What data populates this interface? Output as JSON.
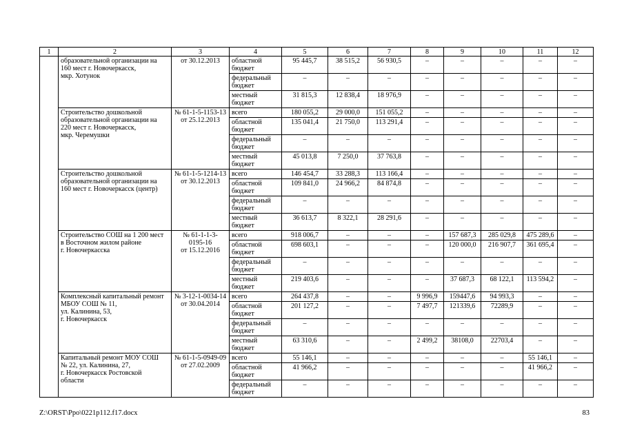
{
  "document": {
    "footer_path": "Z:\\ORST\\Ppo\\0221p112.f17.docx",
    "page_number": "83"
  },
  "table": {
    "column_numbers": [
      "1",
      "2",
      "3",
      "4",
      "5",
      "6",
      "7",
      "8",
      "9",
      "10",
      "11",
      "12"
    ],
    "labels": {
      "total_row": "всего"
    },
    "sections": [
      {
        "row_number": "",
        "object_name": "образовательной организации на\n160 мест г. Новочеркасск,\nмкр. Хотунок",
        "expertise_doc": "от 30.12.2013",
        "rows": [
          {
            "budget": "областной бюджет",
            "values": [
              "95 445,7",
              "38 515,2",
              "56 930,5",
              "–",
              "–",
              "–",
              "–",
              "–"
            ]
          },
          {
            "budget": "федеральный бюджет",
            "values": [
              "–",
              "–",
              "–",
              "–",
              "–",
              "–",
              "–",
              "–"
            ]
          },
          {
            "budget": "местный бюджет",
            "values": [
              "31 815,3",
              "12 838,4",
              "18 976,9",
              "–",
              "–",
              "–",
              "–",
              "–"
            ]
          }
        ]
      },
      {
        "row_number": "",
        "object_name": "Строительство дошкольной\nобразовательной организации на\n220 мест г. Новочеркасск,\nмкр. Черемушки",
        "expertise_doc": "№ 61-1-5-1153-13\nот 25.12.2013",
        "rows": [
          {
            "budget": "всего",
            "values": [
              "180 055,2",
              "29 000,0",
              "151 055,2",
              "–",
              "–",
              "–",
              "–",
              "–"
            ]
          },
          {
            "budget": "областной бюджет",
            "values": [
              "135 041,4",
              "21 750,0",
              "113 291,4",
              "–",
              "–",
              "–",
              "–",
              "–"
            ]
          },
          {
            "budget": "федеральный бюджет",
            "values": [
              "–",
              "–",
              "–",
              "–",
              "–",
              "–",
              "–",
              "–"
            ]
          },
          {
            "budget": "местный бюджет",
            "values": [
              "45 013,8",
              "7 250,0",
              "37 763,8",
              "–",
              "–",
              "–",
              "–",
              "–"
            ]
          }
        ]
      },
      {
        "row_number": "",
        "object_name": "Строительство дошкольной\nобразовательной организации на\n160 мест г. Новочеркасск (центр)",
        "expertise_doc": "№ 61-1-5-1214-13\nот 30.12.2013",
        "rows": [
          {
            "budget": "всего",
            "values": [
              "146 454,7",
              "33 288,3",
              "113 166,4",
              "–",
              "–",
              "–",
              "–",
              "–"
            ]
          },
          {
            "budget": "областной бюджет",
            "values": [
              "109 841,0",
              "24 966,2",
              "84 874,8",
              "–",
              "–",
              "–",
              "–",
              "–"
            ]
          },
          {
            "budget": "федеральный бюджет",
            "values": [
              "–",
              "–",
              "–",
              "–",
              "–",
              "–",
              "–",
              "–"
            ]
          },
          {
            "budget": "местный бюджет",
            "values": [
              "36 613,7",
              "8 322,1",
              "28 291,6",
              "–",
              "–",
              "–",
              "–",
              "–"
            ]
          }
        ]
      },
      {
        "row_number": "",
        "object_name": "Строительство СОШ на 1 200 мест\nв Восточном жилом районе\nг. Новочеркасска",
        "expertise_doc": "№ 61-1-1-3-\n0195-16\nот 15.12.2016",
        "rows": [
          {
            "budget": "всего",
            "values": [
              "918 006,7",
              "–",
              "–",
              "–",
              "157 687,3",
              "285 029,8",
              "475 289,6",
              "–"
            ]
          },
          {
            "budget": "областной бюджет",
            "values": [
              "698 603,1",
              "–",
              "–",
              "–",
              "120 000,0",
              "216 907,7",
              "361 695,4",
              "–"
            ]
          },
          {
            "budget": "федеральный бюджет",
            "values": [
              "–",
              "–",
              "–",
              "–",
              "–",
              "–",
              "–",
              "–"
            ]
          },
          {
            "budget": "местный бюджет",
            "values": [
              "219 403,6",
              "–",
              "–",
              "–",
              "37 687,3",
              "68 122,1",
              "113 594,2",
              "–"
            ]
          }
        ]
      },
      {
        "row_number": "",
        "object_name": "Комплексный капитальный ремонт\nМБОУ СОШ № 11,\nул. Калинина, 53,\nг. Новочеркасск",
        "expertise_doc": "№ 3-12-1-0034-14\nот 30.04.2014",
        "rows": [
          {
            "budget": "всего",
            "values": [
              "264 437,8",
              "–",
              "–",
              "9 996,9",
              "159447,6",
              "94 993,3",
              "–",
              "–"
            ]
          },
          {
            "budget": "областной бюджет",
            "values": [
              "201 127,2",
              "–",
              "–",
              "7 497,7",
              "121339,6",
              "72289,9",
              "–",
              "–"
            ]
          },
          {
            "budget": "федеральный бюджет",
            "values": [
              "–",
              "–",
              "–",
              "–",
              "–",
              "–",
              "–",
              "–"
            ]
          },
          {
            "budget": "местный бюджет",
            "values": [
              "63 310,6",
              "–",
              "–",
              "2 499,2",
              "38108,0",
              "22703,4",
              "–",
              "–"
            ]
          }
        ]
      },
      {
        "row_number": "",
        "object_name": "Капитальный ремонт МОУ СОШ\n№ 22, ул. Калинина, 27,\nг. Новочеркасск Ростовской\nобласти",
        "expertise_doc": "№ 61-1-5-0949-09\nот 27.02.2009",
        "rows": [
          {
            "budget": "всего",
            "values": [
              "55 146,1",
              "–",
              "–",
              "–",
              "–",
              "–",
              "55 146,1",
              "–"
            ]
          },
          {
            "budget": "областной бюджет",
            "values": [
              "41 966,2",
              "–",
              "–",
              "–",
              "–",
              "–",
              "41 966,2",
              "–"
            ]
          },
          {
            "budget": "федеральный бюджет",
            "values": [
              "–",
              "–",
              "–",
              "–",
              "–",
              "–",
              "–",
              "–"
            ]
          }
        ]
      }
    ]
  }
}
